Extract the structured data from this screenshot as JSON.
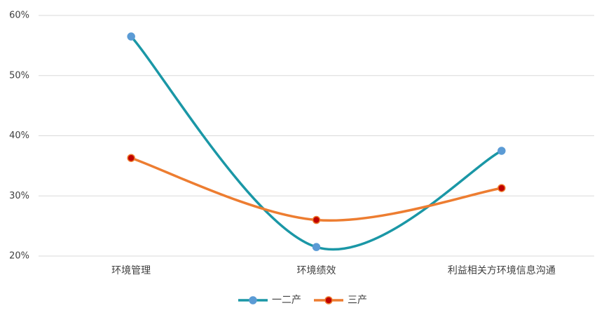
{
  "chart_data": {
    "type": "line",
    "smooth": true,
    "categories": [
      "环境管理",
      "环境绩效",
      "利益相关方环境信息沟通"
    ],
    "series": [
      {
        "name": "一二产",
        "color": "#1a97a6",
        "marker_color": "#5b9bd5",
        "values": [
          56.5,
          21.5,
          37.5
        ]
      },
      {
        "name": "三产",
        "color": "#ed7d31",
        "marker_color": "#c00000",
        "values": [
          36.3,
          26,
          31.3
        ]
      }
    ],
    "ylim": [
      20,
      60
    ],
    "yticks": [
      {
        "value": 20,
        "label": "20%"
      },
      {
        "value": 30,
        "label": "30%"
      },
      {
        "value": 40,
        "label": "40%"
      },
      {
        "value": 50,
        "label": "50%"
      },
      {
        "value": 60,
        "label": "60%"
      }
    ],
    "grid": true,
    "legend": "bottom"
  }
}
